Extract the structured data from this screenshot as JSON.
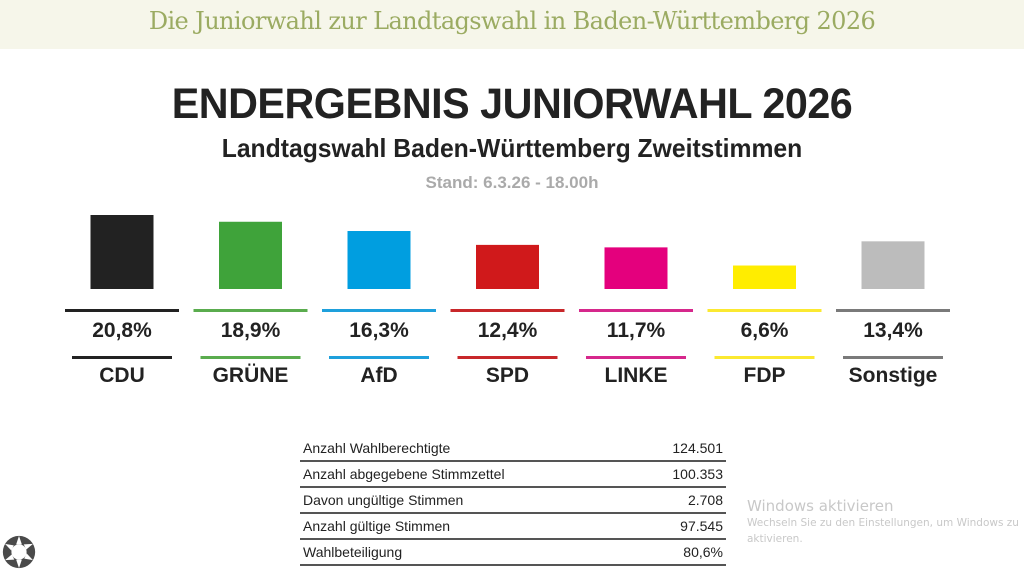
{
  "page": {
    "banner_title": "Die Juniorwahl zur Landtagswahl in Baden-Württemberg 2026"
  },
  "chart_data": {
    "type": "bar",
    "title": "ENDERGEBNIS JUNIORWAHL 2026",
    "subtitle": "Landtagswahl Baden-Württemberg Zweitstimmen",
    "note": "Stand: 6.3.26 - 18.00h",
    "xlabel": "",
    "ylabel": "",
    "categories": [
      "CDU",
      "GRÜNE",
      "AfD",
      "SPD",
      "LINKE",
      "FDP",
      "Sonstige"
    ],
    "values": [
      20.8,
      18.9,
      16.3,
      12.4,
      11.7,
      6.6,
      13.4
    ],
    "value_labels": [
      "20,8%",
      "18,9%",
      "16,3%",
      "12,4%",
      "11,7%",
      "6,6%",
      "13,4%"
    ],
    "colors": [
      "#222222",
      "#3fa33a",
      "#009ee0",
      "#d0191b",
      "#e4007d",
      "#ffed00",
      "#bcbcbc"
    ],
    "line_colors": [
      "#222222",
      "#5aac4e",
      "#1ea0dc",
      "#c8272a",
      "#d6288c",
      "#fbe931",
      "#7a7a7a"
    ],
    "unit": "%",
    "grid": false,
    "legend": "none"
  },
  "stats_table": {
    "rows": [
      {
        "label": "Anzahl Wahlberechtigte",
        "value": "124.501"
      },
      {
        "label": "Anzahl abgegebene Stimmzettel",
        "value": "100.353"
      },
      {
        "label": "Davon ungültige Stimmen",
        "value": "2.708"
      },
      {
        "label": "Anzahl gültige Stimmen",
        "value": "97.545"
      },
      {
        "label": "Wahlbeteiligung",
        "value": "80,6%"
      }
    ]
  },
  "watermark": {
    "title": "Windows aktivieren",
    "text": "Wechseln Sie zu den Einstellungen, um Windows zu aktivieren."
  },
  "icons": {
    "logo": "flower-logo-icon"
  }
}
